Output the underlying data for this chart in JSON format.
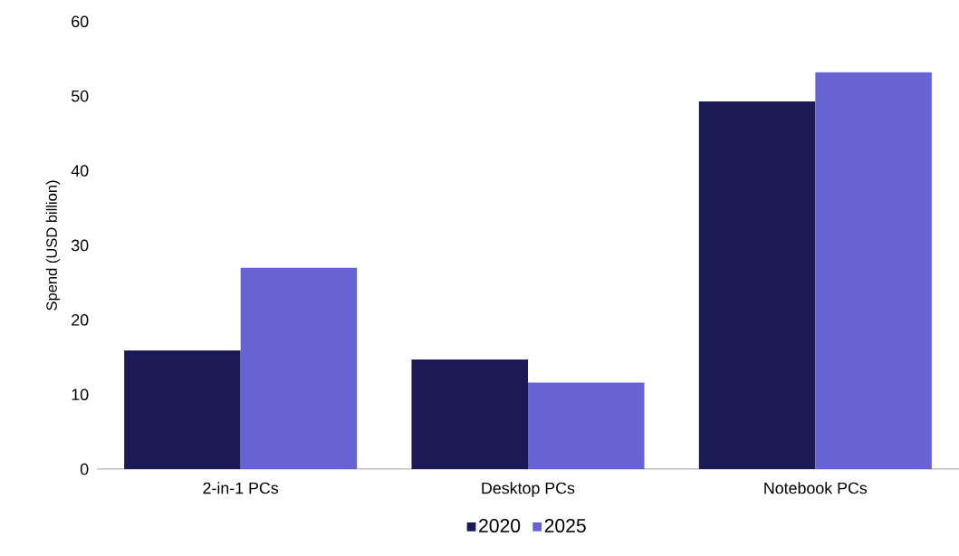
{
  "chart_data": {
    "type": "bar",
    "ylabel": "Spend (USD billion)",
    "categories": [
      "2-in-1 PCs",
      "Desktop PCs",
      "Notebook PCs"
    ],
    "series": [
      {
        "name": "2020",
        "color": "#1b1a57",
        "values": [
          15.9,
          14.7,
          49.3
        ]
      },
      {
        "name": "2025",
        "color": "#6763d4",
        "values": [
          27.0,
          11.6,
          53.2
        ]
      }
    ],
    "ylim": [
      0,
      60
    ],
    "yticks": [
      0,
      10,
      20,
      30,
      40,
      50,
      60
    ],
    "legend": "bottom"
  }
}
